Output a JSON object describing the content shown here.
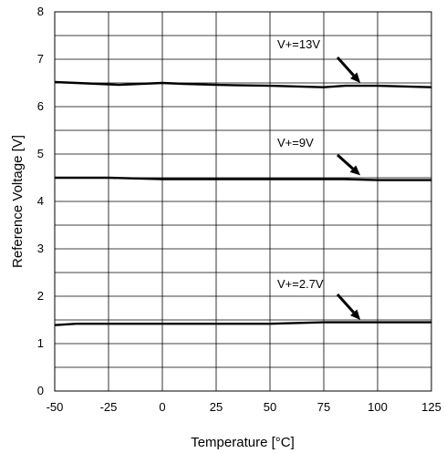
{
  "chart_data": {
    "type": "line",
    "xlabel": "Temperature [°C]",
    "ylabel": "Reference Voltage [V]",
    "xlim": [
      -50,
      125
    ],
    "ylim": [
      0,
      8
    ],
    "grid": true,
    "x_ticks": [
      "-50",
      "-25",
      "0",
      "25",
      "50",
      "75",
      "100",
      "125"
    ],
    "y_ticks": [
      "0",
      "1",
      "2",
      "3",
      "4",
      "5",
      "6",
      "7",
      "8"
    ],
    "series": [
      {
        "name": "V+=13V",
        "x": [
          -50,
          -40,
          -30,
          -20,
          -10,
          0,
          10,
          25,
          50,
          75,
          85,
          100,
          125
        ],
        "y": [
          6.52,
          6.5,
          6.48,
          6.46,
          6.48,
          6.5,
          6.48,
          6.46,
          6.44,
          6.41,
          6.44,
          6.44,
          6.41
        ]
      },
      {
        "name": "V+=9V",
        "x": [
          -50,
          -25,
          0,
          25,
          50,
          75,
          85,
          100,
          125
        ],
        "y": [
          4.5,
          4.5,
          4.47,
          4.47,
          4.47,
          4.47,
          4.47,
          4.45,
          4.45
        ]
      },
      {
        "name": "V+=2.7V",
        "x": [
          -50,
          -40,
          -25,
          0,
          25,
          50,
          75,
          100,
          125
        ],
        "y": [
          1.39,
          1.42,
          1.42,
          1.42,
          1.42,
          1.42,
          1.45,
          1.45,
          1.45
        ]
      }
    ],
    "annotations": [
      "V+=13V",
      "V+=9V",
      "V+=2.7V"
    ]
  }
}
